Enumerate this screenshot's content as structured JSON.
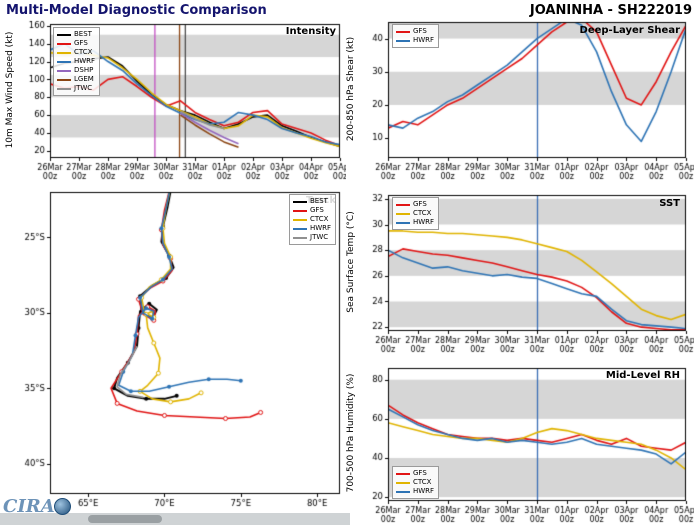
{
  "header": {
    "left_title": "Multi-Model Diagnostic Comparison",
    "right_title": "JOANINHA - SH222019"
  },
  "footer": {
    "logo_text": "CIRA"
  },
  "time_axis": {
    "days": [
      "26Mar",
      "27Mar",
      "28Mar",
      "29Mar",
      "30Mar",
      "31Mar",
      "01Apr",
      "02Apr",
      "03Apr",
      "04Apr",
      "05Apr"
    ],
    "hour_label": "00z",
    "step_hours": 12
  },
  "chart_data": [
    {
      "id": "intensity",
      "type": "line",
      "title": "Intensity",
      "ylabel": "10m Max Wind Speed (kt)",
      "ylim": [
        12,
        162
      ],
      "yticks": [
        20,
        40,
        60,
        80,
        100,
        120,
        140,
        160
      ],
      "bands": [
        [
          35,
          60
        ],
        [
          80,
          105
        ],
        [
          125,
          150
        ]
      ],
      "legend_position": "top-left",
      "vlines": [
        {
          "xi": 7.2,
          "color": "#c24fc2"
        },
        {
          "xi": 8.9,
          "color": "#8b4513"
        },
        {
          "xi": 9.3,
          "color": "#4d4d4d"
        }
      ],
      "series": [
        {
          "name": "BEST",
          "color": "#000000",
          "values": [
            113,
            118,
            120,
            123,
            125,
            115,
            98,
            83,
            72,
            65,
            60,
            52,
            45,
            50,
            58,
            60,
            48,
            42,
            35,
            30,
            25
          ]
        },
        {
          "name": "GFS",
          "color": "#e11414",
          "values": [
            95,
            90,
            92,
            88,
            100,
            103,
            92,
            80,
            70,
            76,
            63,
            55,
            48,
            52,
            63,
            65,
            50,
            45,
            40,
            32,
            26
          ]
        },
        {
          "name": "CTCX",
          "color": "#e0b400",
          "values": [
            130,
            128,
            130,
            127,
            124,
            113,
            100,
            85,
            72,
            65,
            58,
            50,
            45,
            48,
            60,
            58,
            46,
            40,
            34,
            29,
            25
          ]
        },
        {
          "name": "HWRF",
          "color": "#2e74b5",
          "values": [
            133,
            140,
            128,
            132,
            120,
            110,
            95,
            82,
            70,
            62,
            55,
            50,
            52,
            63,
            60,
            55,
            45,
            40,
            36,
            30,
            27
          ]
        },
        {
          "name": "DSHP",
          "color": "#9467bd",
          "values": [
            null,
            null,
            null,
            null,
            null,
            null,
            null,
            null,
            null,
            62,
            52,
            43,
            35,
            28,
            null,
            null,
            null,
            null,
            null,
            null,
            null
          ]
        },
        {
          "name": "LGEM",
          "color": "#8b4513",
          "values": [
            null,
            null,
            null,
            null,
            null,
            null,
            null,
            null,
            null,
            60,
            49,
            39,
            30,
            24,
            null,
            null,
            null,
            null,
            null,
            null,
            null
          ]
        },
        {
          "name": "JTWC",
          "color": "#909090",
          "values": [
            null,
            null,
            null,
            null,
            null,
            null,
            null,
            null,
            null,
            64,
            56,
            49,
            45,
            null,
            null,
            null,
            null,
            null,
            null,
            null,
            null
          ]
        }
      ]
    },
    {
      "id": "track",
      "type": "track",
      "title": "Track",
      "xlim": [
        62.5,
        81.5
      ],
      "latlim": [
        22,
        42
      ],
      "xticks": [
        65,
        70,
        75,
        80
      ],
      "xtick_labels": [
        "65°E",
        "70°E",
        "75°E",
        "80°E"
      ],
      "yticks": [
        25,
        30,
        35,
        40
      ],
      "ytick_labels": [
        "25°S",
        "30°S",
        "35°S",
        "40°S"
      ],
      "legend_position": "top-right",
      "series": [
        {
          "name": "BEST",
          "color": "#000000",
          "marker": "filled",
          "points": [
            [
              70.5,
              21.4
            ],
            [
              70.2,
              23.0
            ],
            [
              69.9,
              24.3
            ],
            [
              69.8,
              25.3
            ],
            [
              70.3,
              26.2
            ],
            [
              70.6,
              27.0
            ],
            [
              70.1,
              27.7
            ],
            [
              69.2,
              28.2
            ],
            [
              68.4,
              28.9
            ],
            [
              68.5,
              29.9
            ],
            [
              69.2,
              30.4
            ],
            [
              69.5,
              29.8
            ],
            [
              69.0,
              29.4
            ],
            [
              68.4,
              29.9
            ],
            [
              68.3,
              31.0
            ],
            [
              68.2,
              32.2
            ],
            [
              67.6,
              33.3
            ],
            [
              66.9,
              34.3
            ],
            [
              66.7,
              35.0
            ],
            [
              67.6,
              35.5
            ],
            [
              68.8,
              35.7
            ],
            [
              70.0,
              35.7
            ],
            [
              70.8,
              35.5
            ]
          ]
        },
        {
          "name": "GFS",
          "color": "#e11414",
          "marker": "open",
          "points": [
            [
              70.4,
              21.6
            ],
            [
              70.0,
              23.2
            ],
            [
              69.8,
              24.5
            ],
            [
              69.9,
              25.5
            ],
            [
              70.4,
              26.4
            ],
            [
              70.5,
              27.2
            ],
            [
              69.9,
              27.9
            ],
            [
              69.0,
              28.4
            ],
            [
              68.3,
              29.1
            ],
            [
              68.6,
              30.1
            ],
            [
              69.3,
              30.5
            ],
            [
              69.4,
              29.9
            ],
            [
              68.9,
              29.6
            ],
            [
              68.3,
              30.2
            ],
            [
              68.2,
              31.4
            ],
            [
              68.0,
              32.6
            ],
            [
              67.2,
              33.9
            ],
            [
              66.5,
              35.0
            ],
            [
              66.9,
              36.0
            ],
            [
              68.2,
              36.5
            ],
            [
              70.0,
              36.8
            ],
            [
              72.0,
              36.9
            ],
            [
              74.0,
              37.0
            ],
            [
              75.6,
              36.9
            ],
            [
              76.3,
              36.6
            ]
          ]
        },
        {
          "name": "CTCX",
          "color": "#e0b400",
          "marker": "open",
          "points": [
            [
              70.4,
              21.7
            ],
            [
              70.1,
              23.1
            ],
            [
              69.9,
              24.4
            ],
            [
              70.0,
              25.4
            ],
            [
              70.4,
              26.3
            ],
            [
              70.4,
              27.1
            ],
            [
              69.8,
              27.8
            ],
            [
              69.0,
              28.3
            ],
            [
              68.5,
              29.0
            ],
            [
              68.7,
              30.0
            ],
            [
              69.3,
              30.3
            ],
            [
              69.2,
              29.9
            ],
            [
              68.8,
              30.1
            ],
            [
              68.9,
              31.0
            ],
            [
              69.3,
              32.0
            ],
            [
              69.7,
              33.0
            ],
            [
              69.6,
              34.0
            ],
            [
              68.9,
              34.8
            ],
            [
              68.4,
              35.2
            ],
            [
              69.2,
              35.7
            ],
            [
              70.4,
              35.9
            ],
            [
              71.6,
              35.7
            ],
            [
              72.4,
              35.3
            ]
          ]
        },
        {
          "name": "HWRF",
          "color": "#2e74b5",
          "marker": "filled",
          "points": [
            [
              70.4,
              21.6
            ],
            [
              70.1,
              23.1
            ],
            [
              69.8,
              24.4
            ],
            [
              69.9,
              25.4
            ],
            [
              70.3,
              26.3
            ],
            [
              70.5,
              27.1
            ],
            [
              69.9,
              27.8
            ],
            [
              69.1,
              28.3
            ],
            [
              68.4,
              29.0
            ],
            [
              68.6,
              30.0
            ],
            [
              69.2,
              30.4
            ],
            [
              69.3,
              29.9
            ],
            [
              68.8,
              29.7
            ],
            [
              68.3,
              30.3
            ],
            [
              68.1,
              31.5
            ],
            [
              67.9,
              32.8
            ],
            [
              67.3,
              33.9
            ],
            [
              67.0,
              34.8
            ],
            [
              67.8,
              35.2
            ],
            [
              69.0,
              35.2
            ],
            [
              70.3,
              34.9
            ],
            [
              71.6,
              34.6
            ],
            [
              72.9,
              34.4
            ],
            [
              74.1,
              34.4
            ],
            [
              75.0,
              34.5
            ]
          ]
        },
        {
          "name": "JTWC",
          "color": "#909090",
          "marker": "none",
          "points": [
            [
              68.2,
              32.2
            ],
            [
              67.7,
              33.2
            ],
            [
              67.1,
              34.1
            ],
            [
              66.9,
              34.9
            ],
            [
              67.5,
              35.4
            ],
            [
              68.6,
              35.6
            ]
          ]
        }
      ]
    },
    {
      "id": "shear",
      "type": "line",
      "title": "Deep-Layer Shear",
      "ylabel": "200-850 hPa Shear (kt)",
      "ylim": [
        4,
        45
      ],
      "yticks": [
        10,
        20,
        30,
        40
      ],
      "bands": [
        [
          20,
          30
        ],
        [
          40,
          45
        ]
      ],
      "legend_position": "top-left",
      "vlines": [
        {
          "xi": 10,
          "color": "#3b6fb5"
        }
      ],
      "series": [
        {
          "name": "GFS",
          "color": "#e11414",
          "values": [
            13,
            15,
            14,
            17,
            20,
            22,
            25,
            28,
            31,
            34,
            38,
            42,
            45,
            46,
            42,
            32,
            22,
            20,
            27,
            36,
            44
          ]
        },
        {
          "name": "HWRF",
          "color": "#2e74b5",
          "values": [
            14,
            13,
            16,
            18,
            21,
            23,
            26,
            29,
            32,
            36,
            40,
            43,
            46,
            44,
            36,
            24,
            14,
            9,
            18,
            30,
            43
          ]
        }
      ]
    },
    {
      "id": "sst",
      "type": "line",
      "title": "SST",
      "ylabel": "Sea Surface Temp (°C)",
      "ylim": [
        21.7,
        32.3
      ],
      "yticks": [
        22,
        24,
        26,
        28,
        30,
        32
      ],
      "bands": [
        [
          22,
          24
        ],
        [
          26,
          28
        ],
        [
          30,
          32
        ]
      ],
      "legend_position": "top-left",
      "vlines": [
        {
          "xi": 10,
          "color": "#3b6fb5"
        }
      ],
      "series": [
        {
          "name": "GFS",
          "color": "#e11414",
          "values": [
            27.5,
            28.1,
            27.9,
            27.7,
            27.6,
            27.4,
            27.2,
            27.0,
            26.7,
            26.4,
            26.1,
            25.9,
            25.6,
            25.1,
            24.3,
            23.2,
            22.3,
            22.0,
            21.9,
            21.8,
            21.8
          ]
        },
        {
          "name": "CTCX",
          "color": "#e0b400",
          "values": [
            29.5,
            29.5,
            29.4,
            29.4,
            29.3,
            29.3,
            29.2,
            29.1,
            29.0,
            28.8,
            28.5,
            28.2,
            27.9,
            27.2,
            26.3,
            25.4,
            24.4,
            23.4,
            22.9,
            22.6,
            23.0
          ]
        },
        {
          "name": "HWRF",
          "color": "#2e74b5",
          "values": [
            28.0,
            27.4,
            27.0,
            26.6,
            26.7,
            26.4,
            26.2,
            26.0,
            26.1,
            25.9,
            25.8,
            25.4,
            25.0,
            24.6,
            24.4,
            23.4,
            22.5,
            22.2,
            22.1,
            22.0,
            21.9
          ]
        }
      ]
    },
    {
      "id": "rh",
      "type": "line",
      "title": "Mid-Level RH",
      "ylabel": "700-500 hPa Humidity (%)",
      "ylim": [
        18,
        86
      ],
      "yticks": [
        20,
        40,
        60,
        80
      ],
      "bands": [
        [
          20,
          40
        ],
        [
          60,
          80
        ]
      ],
      "legend_position": "bottom-left",
      "vlines": [
        {
          "xi": 10,
          "color": "#3b6fb5"
        }
      ],
      "series": [
        {
          "name": "GFS",
          "color": "#e11414",
          "values": [
            67,
            62,
            58,
            55,
            52,
            51,
            50,
            50,
            49,
            50,
            49,
            48,
            50,
            52,
            49,
            47,
            50,
            46,
            45,
            44,
            48
          ]
        },
        {
          "name": "CTCX",
          "color": "#e0b400",
          "values": [
            58,
            56,
            54,
            52,
            51,
            50,
            50,
            49,
            48,
            50,
            53,
            55,
            54,
            52,
            50,
            49,
            48,
            47,
            44,
            40,
            34
          ]
        },
        {
          "name": "HWRF",
          "color": "#2e74b5",
          "values": [
            65,
            61,
            57,
            54,
            52,
            50,
            49,
            50,
            48,
            49,
            48,
            47,
            48,
            50,
            47,
            46,
            45,
            44,
            42,
            37,
            43
          ]
        }
      ]
    }
  ]
}
